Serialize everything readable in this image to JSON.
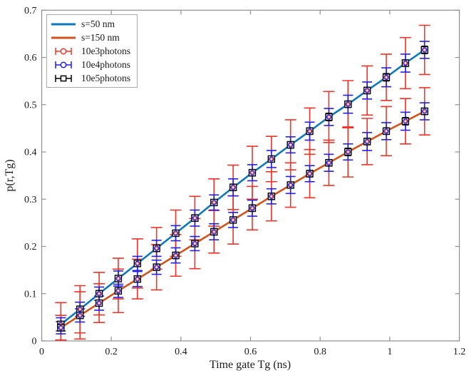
{
  "chart_data": {
    "type": "line",
    "title": "",
    "xlabel": "Time gate Tg (ns)",
    "ylabel": "p(r,Tg)",
    "xlim": [
      0,
      1.2
    ],
    "ylim": [
      0,
      0.7
    ],
    "xticks": [
      0,
      0.2,
      0.4,
      0.6,
      0.8,
      1,
      1.2
    ],
    "xtick_labels": [
      "0",
      "0.2",
      "0.4",
      "0.6",
      "0.8",
      "1",
      "1.2"
    ],
    "yticks": [
      0,
      0.1,
      0.2,
      0.3,
      0.4,
      0.5,
      0.6,
      0.7
    ],
    "ytick_labels": [
      "0",
      "0.1",
      "0.2",
      "0.3",
      "0.4",
      "0.5",
      "0.6",
      "0.7"
    ],
    "grid": false,
    "axis_color": "#909090",
    "text_color": "#1a1a1a",
    "x": [
      0.055,
      0.11,
      0.165,
      0.22,
      0.275,
      0.33,
      0.385,
      0.44,
      0.495,
      0.55,
      0.605,
      0.66,
      0.715,
      0.77,
      0.825,
      0.88,
      0.935,
      0.99,
      1.045,
      1.1
    ],
    "series": [
      {
        "name": "s=50 nm",
        "color": "#0d78be",
        "values": [
          0.035,
          0.067,
          0.1,
          0.132,
          0.164,
          0.196,
          0.228,
          0.26,
          0.293,
          0.325,
          0.356,
          0.385,
          0.415,
          0.444,
          0.474,
          0.501,
          0.53,
          0.558,
          0.588,
          0.616
        ],
        "errors": {
          "photons_10e3": [
            0.046,
            0.05,
            0.045,
            0.043,
            0.052,
            0.044,
            0.049,
            0.046,
            0.05,
            0.047,
            0.056,
            0.048,
            0.053,
            0.049,
            0.054,
            0.05,
            0.052,
            0.049,
            0.054,
            0.052
          ],
          "photons_10e4": [
            0.014,
            0.015,
            0.014,
            0.016,
            0.015,
            0.017,
            0.016,
            0.017,
            0.016,
            0.018,
            0.017,
            0.018,
            0.017,
            0.019,
            0.018,
            0.019,
            0.018,
            0.02,
            0.019,
            0.018
          ],
          "photons_10e5": [
            0.005,
            0.006,
            0.005,
            0.006,
            0.006,
            0.007,
            0.006,
            0.007,
            0.006,
            0.007,
            0.007,
            0.006,
            0.007,
            0.007,
            0.008,
            0.007,
            0.007,
            0.008,
            0.007,
            0.008
          ]
        }
      },
      {
        "name": "s=150 nm",
        "color": "#d2521e",
        "values": [
          0.028,
          0.054,
          0.08,
          0.106,
          0.131,
          0.156,
          0.181,
          0.206,
          0.231,
          0.256,
          0.281,
          0.306,
          0.33,
          0.354,
          0.377,
          0.4,
          0.422,
          0.444,
          0.465,
          0.486
        ],
        "errors": {
          "photons_10e3": [
            0.026,
            0.05,
            0.041,
            0.046,
            0.042,
            0.048,
            0.044,
            0.053,
            0.045,
            0.051,
            0.046,
            0.052,
            0.047,
            0.051,
            0.048,
            0.053,
            0.049,
            0.052,
            0.048,
            0.05
          ],
          "photons_10e4": [
            0.013,
            0.014,
            0.015,
            0.014,
            0.016,
            0.015,
            0.016,
            0.015,
            0.017,
            0.016,
            0.017,
            0.016,
            0.018,
            0.017,
            0.018,
            0.017,
            0.019,
            0.018,
            0.019,
            0.018
          ],
          "photons_10e5": [
            0.005,
            0.005,
            0.006,
            0.005,
            0.006,
            0.006,
            0.007,
            0.006,
            0.007,
            0.006,
            0.007,
            0.007,
            0.006,
            0.007,
            0.007,
            0.008,
            0.007,
            0.007,
            0.008,
            0.007
          ]
        }
      }
    ],
    "error_styles": [
      {
        "key": "photons_10e3",
        "color": "#f03328",
        "cap": 16,
        "lw": 1.6
      },
      {
        "key": "photons_10e4",
        "color": "#1f1fe8",
        "cap": 14,
        "lw": 1.6
      },
      {
        "key": "photons_10e5",
        "color": "#000000",
        "cap": 9,
        "lw": 1.3
      }
    ],
    "marker": {
      "square_size": 9,
      "square_color": "#000000",
      "circle_color": "#1f1fe8",
      "inner_circle_color": "#f03328"
    },
    "legend": {
      "position": "top-left",
      "entries": [
        {
          "label": "s=50 nm",
          "kind": "line",
          "color": "#0d78be",
          "marker": "none"
        },
        {
          "label": "s=150 nm",
          "kind": "line",
          "color": "#d2521e",
          "marker": "none"
        },
        {
          "label": "10e3photons",
          "kind": "errorbar",
          "color": "#f03328",
          "marker": "circle"
        },
        {
          "label": "10e4photons",
          "kind": "errorbar",
          "color": "#1f1fe8",
          "marker": "circle"
        },
        {
          "label": "10e5photons",
          "kind": "errorbar",
          "color": "#000000",
          "marker": "square"
        }
      ]
    }
  },
  "layout_text": {
    "xlabel": "Time gate Tg (ns)",
    "ylabel": "p(r,Tg)"
  }
}
